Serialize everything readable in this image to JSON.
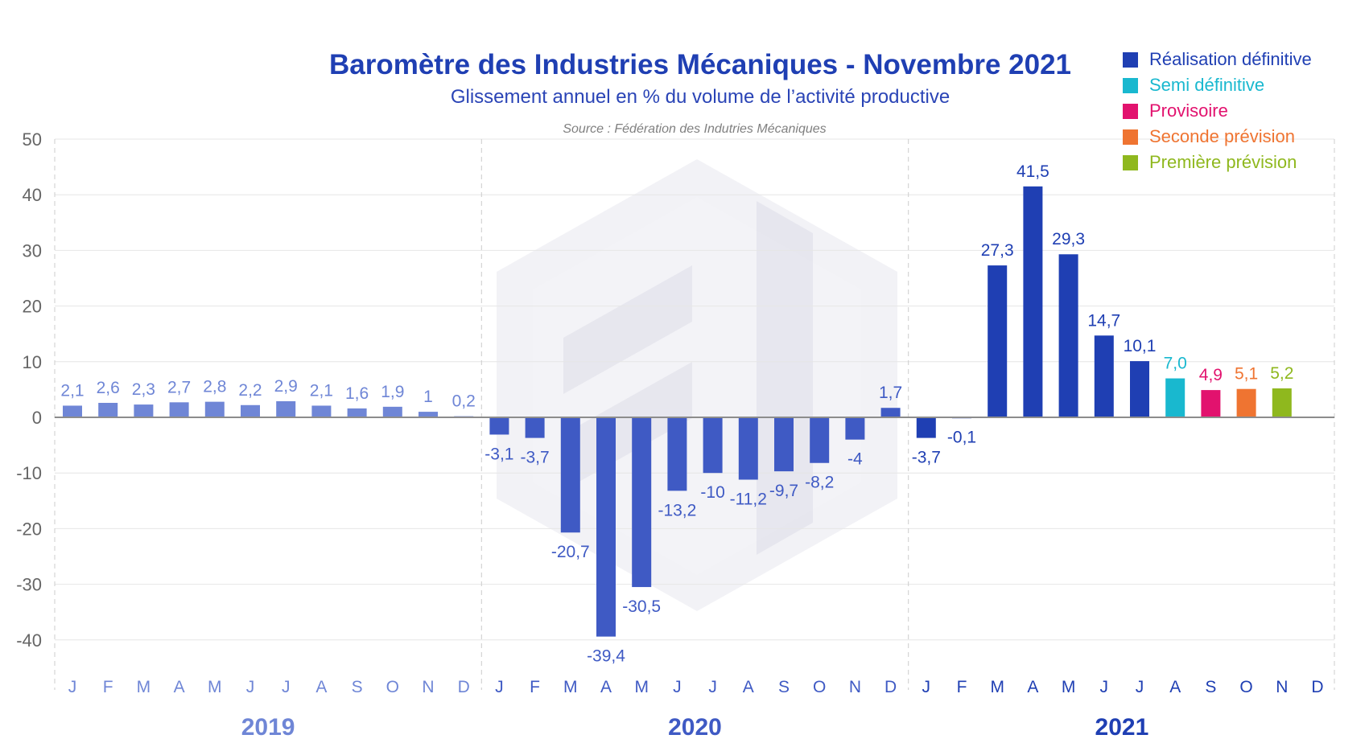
{
  "chart_data": {
    "type": "bar",
    "title": "Baromètre des Industries Mécaniques - Novembre 2021",
    "subtitle": "Glissement annuel en % du volume de l’activité productive",
    "source": "Source : Fédération des Indutries Mécaniques",
    "xlabel": "",
    "ylabel": "",
    "ylim": [
      -40,
      50
    ],
    "yticks": [
      50,
      40,
      30,
      20,
      10,
      0,
      -10,
      -20,
      -30,
      -40
    ],
    "grid": true,
    "legend_position": "top-right",
    "years": [
      "2019",
      "2020",
      "2021"
    ],
    "categories": [
      "J",
      "F",
      "M",
      "A",
      "M",
      "J",
      "J",
      "A",
      "S",
      "O",
      "N",
      "D",
      "J",
      "F",
      "M",
      "A",
      "M",
      "J",
      "J",
      "A",
      "S",
      "O",
      "N",
      "D",
      "J",
      "F",
      "M",
      "A",
      "M",
      "J",
      "J",
      "A",
      "S",
      "O",
      "N",
      "D"
    ],
    "values": [
      2.1,
      2.6,
      2.3,
      2.7,
      2.8,
      2.2,
      2.9,
      2.1,
      1.6,
      1.9,
      1,
      0.2,
      -3.1,
      -3.7,
      -20.7,
      -39.4,
      -30.5,
      -13.2,
      -10,
      -11.2,
      -9.7,
      -8.2,
      -4,
      1.7,
      -3.7,
      -0.1,
      27.3,
      41.5,
      29.3,
      14.7,
      10.1,
      7.0,
      4.9,
      5.1,
      5.2,
      null
    ],
    "value_labels": [
      "2,1",
      "2,6",
      "2,3",
      "2,7",
      "2,8",
      "2,2",
      "2,9",
      "2,1",
      "1,6",
      "1,9",
      "1",
      "0,2",
      "-3,1",
      "-3,7",
      "-20,7",
      "-39,4",
      "-30,5",
      "-13,2",
      "-10",
      "-11,2",
      "-9,7",
      "-8,2",
      "-4",
      "1,7",
      "-3,7",
      "-0,1",
      "27,3",
      "41,5",
      "29,3",
      "14,7",
      "10,1",
      "7,0",
      "4,9",
      "5,1",
      "5,2",
      ""
    ],
    "status": [
      "c2019",
      "c2019",
      "c2019",
      "c2019",
      "c2019",
      "c2019",
      "c2019",
      "c2019",
      "c2019",
      "c2019",
      "c2019",
      "c2019",
      "c2020",
      "c2020",
      "c2020",
      "c2020",
      "c2020",
      "c2020",
      "c2020",
      "c2020",
      "c2020",
      "c2020",
      "c2020",
      "c2020",
      "final",
      "final",
      "final",
      "final",
      "final",
      "final",
      "final",
      "semi",
      "provisional",
      "second",
      "first",
      "none"
    ],
    "status_colors": {
      "c2019": "#6f86d6",
      "c2020": "#3f5ac4",
      "final": "#1f3fb3",
      "semi": "#19b8cf",
      "provisional": "#e2126e",
      "second": "#ef7431",
      "first": "#8fb81e",
      "none": "#1f3fb3"
    },
    "year_colors": [
      "#6f86d6",
      "#3f5ac4",
      "#1f3fb3"
    ],
    "legend": [
      {
        "label": "Réalisation définitive",
        "color": "#1f3fb3"
      },
      {
        "label": "Semi définitive",
        "color": "#19b8cf"
      },
      {
        "label": "Provisoire",
        "color": "#e2126e"
      },
      {
        "label": "Seconde prévision",
        "color": "#ef7431"
      },
      {
        "label": "Première prévision",
        "color": "#8fb81e"
      }
    ],
    "title_color": "#1f3fb3"
  }
}
